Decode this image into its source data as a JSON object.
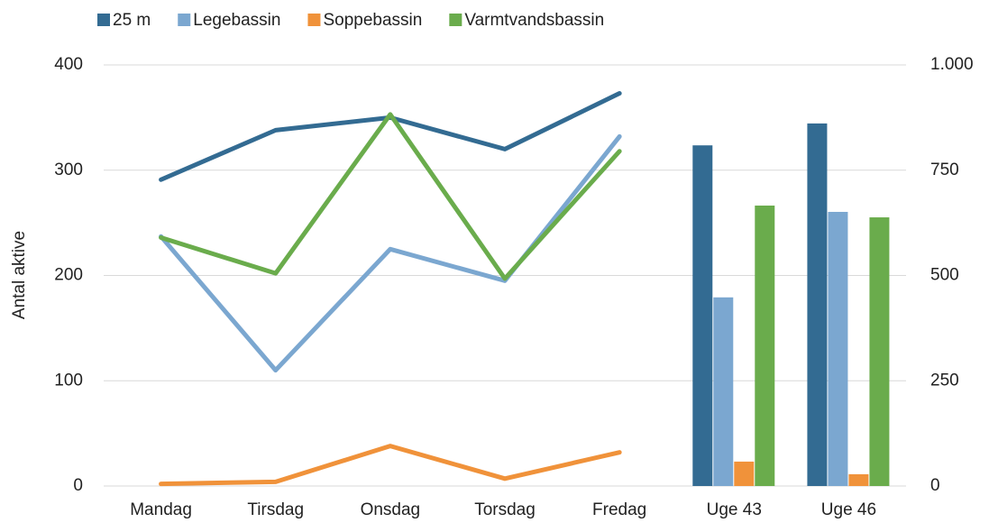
{
  "chart_data": {
    "type": "line-bar-combo",
    "categories": [
      "Mandag",
      "Tirsdag",
      "Onsdag",
      "Torsdag",
      "Fredag",
      "Uge 43",
      "Uge 46"
    ],
    "series": [
      {
        "name": "25 m",
        "color": "#336b92",
        "values": [
          291,
          338,
          350,
          320,
          373,
          null,
          null
        ],
        "y2_values": [
          null,
          null,
          null,
          null,
          null,
          809,
          861
        ]
      },
      {
        "name": "Legebassin",
        "color": "#7ba7d0",
        "values": [
          237,
          110,
          225,
          195,
          332,
          null,
          null
        ],
        "y2_values": [
          null,
          null,
          null,
          null,
          null,
          448,
          651
        ]
      },
      {
        "name": "Soppebassin",
        "color": "#f0923a",
        "values": [
          2,
          4,
          38,
          7,
          32,
          null,
          null
        ],
        "y2_values": [
          null,
          null,
          null,
          null,
          null,
          58,
          28
        ]
      },
      {
        "name": "Varmtvandsbassin",
        "color": "#6aac4c",
        "values": [
          236,
          202,
          353,
          197,
          318,
          null,
          null
        ],
        "y2_values": [
          null,
          null,
          null,
          null,
          null,
          666,
          638
        ]
      }
    ],
    "y_label": "Antal aktive",
    "ylim": [
      0,
      400
    ],
    "yticks": [
      0,
      100,
      200,
      300,
      400
    ],
    "y2lim": [
      0,
      1000
    ],
    "y2ticks": [
      0,
      250,
      500,
      750,
      {
        "value": 1000,
        "label": "1.000"
      }
    ],
    "grid": true,
    "legend": "top"
  }
}
